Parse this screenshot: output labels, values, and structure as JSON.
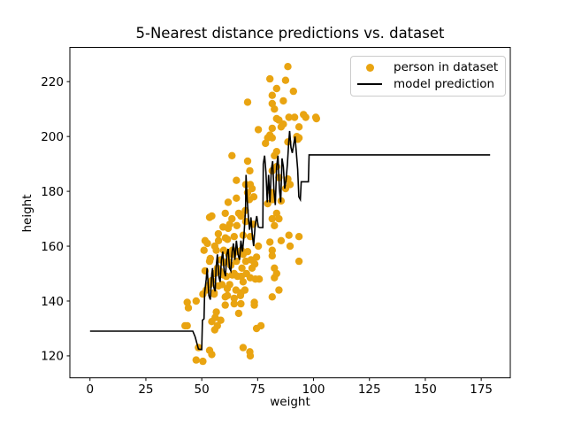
{
  "figure": {
    "title": "5-Nearest distance predictions vs. dataset",
    "xlabel": "weight",
    "ylabel": "height",
    "background_color": "#ffffff",
    "spine_color": "#000000",
    "tick_label_color": "#000000"
  },
  "legend": {
    "border_color": "#cccccc",
    "items": [
      {
        "label": "person in dataset",
        "marker": "dot",
        "color": "#E9A411"
      },
      {
        "label": "model prediction",
        "marker": "line",
        "color": "#000000"
      }
    ]
  },
  "chart_data": {
    "type": "scatter",
    "title": "5-Nearest distance predictions vs. dataset",
    "xlabel": "weight",
    "ylabel": "height",
    "xlim": [
      -9,
      188
    ],
    "ylim": [
      112,
      232.5
    ],
    "xticks": [
      0,
      25,
      50,
      75,
      100,
      125,
      150,
      175
    ],
    "yticks": [
      120,
      140,
      160,
      180,
      200,
      220
    ],
    "grid": false,
    "legend_position": "upper right",
    "series": [
      {
        "name": "person in dataset",
        "kind": "scatter",
        "color": "#E9A411",
        "marker_radius": 4.2,
        "points": [
          [
            42.5,
            131
          ],
          [
            43.5,
            139.5
          ],
          [
            44,
            137.5
          ],
          [
            43.5,
            131
          ],
          [
            47.5,
            140
          ],
          [
            48.5,
            123
          ],
          [
            47.5,
            118.5
          ],
          [
            50.5,
            118
          ],
          [
            53.5,
            122
          ],
          [
            51.5,
            151
          ],
          [
            53.5,
            154.5
          ],
          [
            52,
            144
          ],
          [
            54.5,
            147.5
          ],
          [
            51.5,
            162
          ],
          [
            50.5,
            142.5
          ],
          [
            51,
            158.5
          ],
          [
            52.5,
            161
          ],
          [
            53.5,
            170.5
          ],
          [
            54.5,
            171
          ],
          [
            55.5,
            143
          ],
          [
            56.5,
            158.5
          ],
          [
            56,
            134
          ],
          [
            57,
            131
          ],
          [
            55.5,
            142.5
          ],
          [
            54.5,
            132.5
          ],
          [
            54.5,
            120.5
          ],
          [
            55.8,
            129.5
          ],
          [
            56.5,
            136
          ],
          [
            53.8,
            155.5
          ],
          [
            55.8,
            150
          ],
          [
            53.5,
            146
          ],
          [
            55.8,
            160
          ],
          [
            57.5,
            162
          ],
          [
            58.5,
            133
          ],
          [
            58.6,
            155
          ],
          [
            57.4,
            164.5
          ],
          [
            57.4,
            145.5
          ],
          [
            59.8,
            158.5
          ],
          [
            59.8,
            149.5
          ],
          [
            60.5,
            172
          ],
          [
            60.6,
            163
          ],
          [
            60.5,
            141.5
          ],
          [
            60.5,
            138.5
          ],
          [
            61.5,
            162.5
          ],
          [
            61.8,
            176
          ],
          [
            61.8,
            166.5
          ],
          [
            61.8,
            154.5
          ],
          [
            61.4,
            144.5
          ],
          [
            61.5,
            142
          ],
          [
            63.5,
            193
          ],
          [
            63.5,
            170
          ],
          [
            63.7,
            158.5
          ],
          [
            63.7,
            149.5
          ],
          [
            64.5,
            163.5
          ],
          [
            64.5,
            141
          ],
          [
            64.5,
            139
          ],
          [
            65.5,
            184
          ],
          [
            65.5,
            177.5
          ],
          [
            66.5,
            172
          ],
          [
            65.7,
            167.5
          ],
          [
            65.5,
            154.5
          ],
          [
            65.3,
            144
          ],
          [
            66.5,
            135.5
          ],
          [
            67.5,
            171
          ],
          [
            67.7,
            158.5
          ],
          [
            67.7,
            149
          ],
          [
            67.5,
            143
          ],
          [
            67.5,
            139
          ],
          [
            67.3,
            142
          ],
          [
            69.5,
            173
          ],
          [
            68.5,
            164
          ],
          [
            69.3,
            144
          ],
          [
            68.5,
            123
          ],
          [
            69.7,
            182.5
          ],
          [
            69.7,
            169
          ],
          [
            69.7,
            154.5
          ],
          [
            70.5,
            212.5
          ],
          [
            70.5,
            191
          ],
          [
            70.5,
            179.5
          ],
          [
            71.5,
            187.5
          ],
          [
            71.3,
            177
          ],
          [
            71.7,
            182.5
          ],
          [
            71.7,
            163.5
          ],
          [
            71.7,
            148.5
          ],
          [
            71.5,
            121.5
          ],
          [
            71.7,
            120
          ],
          [
            72.5,
            181
          ],
          [
            73.3,
            178
          ],
          [
            73.5,
            139.5
          ],
          [
            73.5,
            138.5
          ],
          [
            73.7,
            153.5
          ],
          [
            75.3,
            202.5
          ],
          [
            74.5,
            130
          ],
          [
            75.3,
            160
          ],
          [
            75.7,
            148
          ],
          [
            76.5,
            131
          ],
          [
            78.5,
            197.5
          ],
          [
            79.5,
            199.5
          ],
          [
            79.5,
            175.5
          ],
          [
            80.5,
            221
          ],
          [
            80.5,
            200.5
          ],
          [
            80.5,
            161.5
          ],
          [
            81.5,
            215
          ],
          [
            81.5,
            212
          ],
          [
            81.5,
            203
          ],
          [
            81.5,
            199.5
          ],
          [
            81.5,
            187.5
          ],
          [
            81.5,
            179.5
          ],
          [
            81.7,
            177
          ],
          [
            81.5,
            170
          ],
          [
            81.5,
            158.5
          ],
          [
            81.5,
            156.5
          ],
          [
            81.5,
            141.5
          ],
          [
            82.5,
            210
          ],
          [
            82.5,
            193
          ],
          [
            82.5,
            167.5
          ],
          [
            82.5,
            152
          ],
          [
            82.5,
            148.5
          ],
          [
            83.5,
            217.5
          ],
          [
            83.5,
            206.5
          ],
          [
            83.5,
            194.5
          ],
          [
            83.5,
            189
          ],
          [
            83.5,
            172
          ],
          [
            83.5,
            150
          ],
          [
            84.5,
            206
          ],
          [
            84.5,
            185
          ],
          [
            84.5,
            170
          ],
          [
            84.5,
            144
          ],
          [
            85.5,
            203.5
          ],
          [
            85.5,
            176.5
          ],
          [
            85.5,
            162
          ],
          [
            86.5,
            213
          ],
          [
            86.5,
            204.5
          ],
          [
            87.5,
            220.5
          ],
          [
            87.5,
            181
          ],
          [
            88.5,
            225.5
          ],
          [
            88.5,
            198
          ],
          [
            88.5,
            184.5
          ],
          [
            89,
            207
          ],
          [
            89,
            164
          ],
          [
            89.5,
            182.5
          ],
          [
            89.5,
            160
          ],
          [
            91,
            216.5
          ],
          [
            91.5,
            207
          ],
          [
            92.5,
            200
          ],
          [
            93,
            199
          ],
          [
            93.5,
            203.5
          ],
          [
            93.5,
            199.5
          ],
          [
            93.5,
            163.5
          ],
          [
            93.5,
            154.5
          ],
          [
            95.5,
            208
          ],
          [
            96.5,
            207
          ],
          [
            101,
            207
          ],
          [
            101.3,
            206.5
          ],
          [
            58,
            151
          ],
          [
            59,
            146
          ],
          [
            60,
            154
          ],
          [
            61,
            149
          ],
          [
            62,
            157
          ],
          [
            62.5,
            146
          ],
          [
            63,
            153
          ],
          [
            64,
            157
          ],
          [
            64.5,
            150
          ],
          [
            66,
            149
          ],
          [
            66.5,
            158
          ],
          [
            68,
            152
          ],
          [
            68.5,
            157
          ],
          [
            70,
            150
          ],
          [
            70.5,
            158
          ],
          [
            72,
            155
          ],
          [
            72.5,
            152
          ],
          [
            74,
            148
          ],
          [
            74.5,
            156
          ],
          [
            73,
            168
          ],
          [
            68.5,
            147
          ],
          [
            62.5,
            168
          ],
          [
            59.5,
            167
          ],
          [
            57,
            152
          ]
        ]
      },
      {
        "name": "model prediction",
        "kind": "line",
        "color": "#000000",
        "line_width": 1.6,
        "points": [
          [
            0,
            129
          ],
          [
            46,
            129
          ],
          [
            47,
            127
          ],
          [
            48.5,
            122.5
          ],
          [
            50,
            122.3
          ],
          [
            50.3,
            133
          ],
          [
            51,
            133.5
          ],
          [
            51.3,
            143
          ],
          [
            52,
            148
          ],
          [
            52.4,
            152
          ],
          [
            53.2,
            142
          ],
          [
            53.8,
            140.5
          ],
          [
            54.4,
            149
          ],
          [
            54.8,
            152
          ],
          [
            55.4,
            145
          ],
          [
            56,
            143.5
          ],
          [
            56.4,
            152
          ],
          [
            57,
            157
          ],
          [
            57.6,
            149
          ],
          [
            58.2,
            147
          ],
          [
            58.8,
            155
          ],
          [
            59.4,
            158
          ],
          [
            60,
            151
          ],
          [
            60.6,
            149
          ],
          [
            61.2,
            157
          ],
          [
            61.8,
            159
          ],
          [
            62.4,
            152
          ],
          [
            63,
            151
          ],
          [
            63.6,
            158
          ],
          [
            64.2,
            161
          ],
          [
            64.8,
            155
          ],
          [
            65.5,
            162
          ],
          [
            66.2,
            157
          ],
          [
            66.9,
            155
          ],
          [
            67.5,
            162
          ],
          [
            68.2,
            158
          ],
          [
            68.9,
            164
          ],
          [
            69.6,
            174
          ],
          [
            69.8,
            186
          ],
          [
            70.3,
            177
          ],
          [
            70.9,
            170
          ],
          [
            71.4,
            166
          ],
          [
            72,
            170.5
          ],
          [
            72.6,
            164
          ],
          [
            73.2,
            160
          ],
          [
            73.9,
            168
          ],
          [
            74.6,
            171
          ],
          [
            75.3,
            167
          ],
          [
            76,
            166.8
          ],
          [
            77.3,
            166.8
          ],
          [
            77.5,
            190
          ],
          [
            78.1,
            193
          ],
          [
            78.7,
            187
          ],
          [
            79.3,
            176
          ],
          [
            79.9,
            186
          ],
          [
            80.5,
            176
          ],
          [
            81.1,
            188
          ],
          [
            81.7,
            191
          ],
          [
            82.3,
            180
          ],
          [
            82.9,
            175
          ],
          [
            83.5,
            189
          ],
          [
            84.1,
            193
          ],
          [
            84.7,
            181
          ],
          [
            85.3,
            176
          ],
          [
            85.9,
            192
          ],
          [
            86.5,
            189
          ],
          [
            87.1,
            181
          ],
          [
            87.7,
            184
          ],
          [
            88.3,
            190
          ],
          [
            88.9,
            198
          ],
          [
            89.3,
            202
          ],
          [
            89.9,
            196
          ],
          [
            90.5,
            194
          ],
          [
            91.1,
            197
          ],
          [
            91.7,
            200
          ],
          [
            92.3,
            194
          ],
          [
            92.9,
            188
          ],
          [
            93.4,
            178
          ],
          [
            94.1,
            177
          ],
          [
            94.5,
            183.5
          ],
          [
            97.7,
            183.5
          ],
          [
            98,
            193.3
          ],
          [
            179,
            193.3
          ]
        ]
      }
    ]
  }
}
